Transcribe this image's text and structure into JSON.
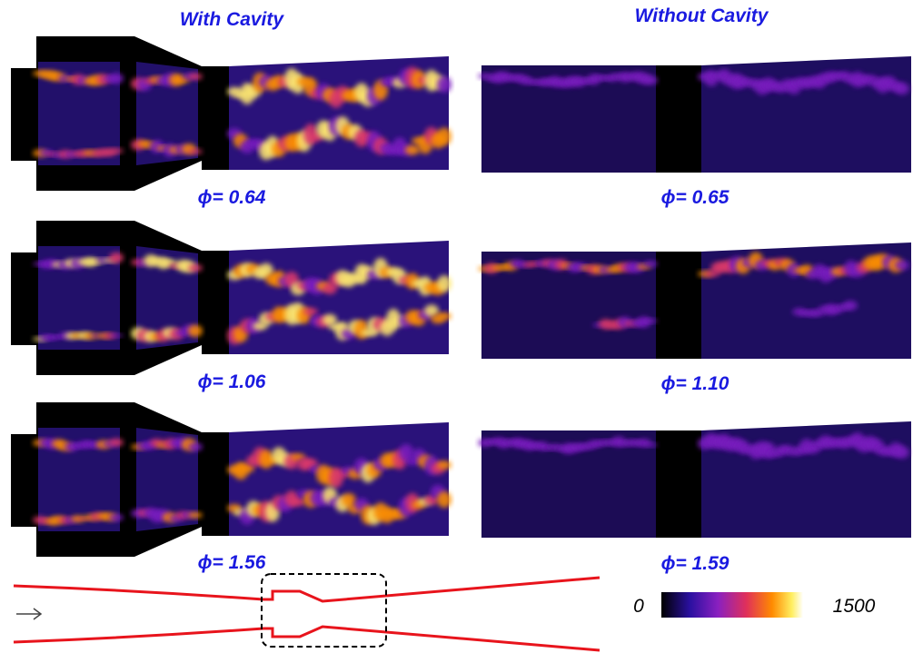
{
  "header": {
    "left_title": "With Cavity",
    "right_title": "Without Cavity"
  },
  "rows": [
    {
      "left_label": "ϕ= 0.64",
      "right_label": "ϕ= 0.65"
    },
    {
      "left_label": "ϕ= 1.06",
      "right_label": "ϕ= 1.10"
    },
    {
      "left_label": "ϕ= 1.56",
      "right_label": "ϕ= 1.59"
    }
  ],
  "colorbar": {
    "min": 0,
    "max": 1500
  }
}
